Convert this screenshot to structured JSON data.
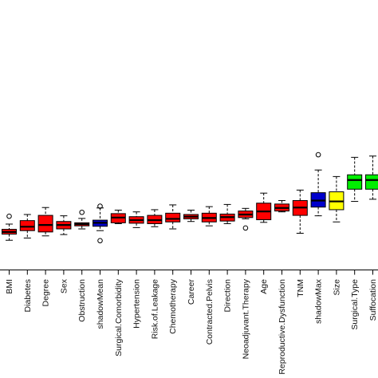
{
  "chart_data": {
    "type": "boxplot",
    "orientation": "vertical",
    "title": "",
    "xlabel": "",
    "ylabel": "",
    "grid": false,
    "legend": "none",
    "ylim": [
      0,
      45
    ],
    "categories": [
      "BMI",
      "Diabetes",
      "Degree",
      "Sex",
      "Obstruction",
      "shadowMean",
      "Surgical.Comorbidity",
      "Hypertension",
      "Risk.of.Leakage",
      "Chemotherapy",
      "Career",
      "Contracted.Pelvis",
      "Direction",
      "Neoadjuvant.Therapy",
      "Age",
      "Reproductive.Dysfunction",
      "TNM",
      "shadowMax",
      "Size",
      "Surgical.Type",
      "Suffocation"
    ],
    "boxes": [
      {
        "min": 1.6,
        "q1": 3.0,
        "median": 3.5,
        "q3": 4.1,
        "max": 5.3,
        "outliers": [
          7.1
        ],
        "color": "#ff0000"
      },
      {
        "min": 2.1,
        "q1": 3.8,
        "median": 4.7,
        "q3": 6.1,
        "max": 7.5,
        "outliers": [],
        "color": "#ff0000"
      },
      {
        "min": 2.6,
        "q1": 3.5,
        "median": 5.1,
        "q3": 7.3,
        "max": 9.1,
        "outliers": [],
        "color": "#ff0000"
      },
      {
        "min": 2.9,
        "q1": 4.2,
        "median": 5.1,
        "q3": 5.9,
        "max": 7.2,
        "outliers": [],
        "color": "#ff0000"
      },
      {
        "min": 4.2,
        "q1": 4.9,
        "median": 5.3,
        "q3": 5.6,
        "max": 6.6,
        "outliers": [
          8.0
        ],
        "color": "#ff0000"
      },
      {
        "min": 3.8,
        "q1": 4.8,
        "median": 5.6,
        "q3": 6.2,
        "max": 9.0,
        "outliers": [
          1.5,
          9.4
        ],
        "color": "#0000cc"
      },
      {
        "min": 5.4,
        "q1": 5.6,
        "median": 6.8,
        "q3": 7.7,
        "max": 8.5,
        "outliers": [],
        "color": "#ff0000"
      },
      {
        "min": 4.5,
        "q1": 5.5,
        "median": 6.2,
        "q3": 7.0,
        "max": 8.1,
        "outliers": [],
        "color": "#ff0000"
      },
      {
        "min": 4.7,
        "q1": 5.4,
        "median": 6.2,
        "q3": 7.3,
        "max": 8.6,
        "outliers": [],
        "color": "#ff0000"
      },
      {
        "min": 4.2,
        "q1": 5.8,
        "median": 6.5,
        "q3": 7.8,
        "max": 9.7,
        "outliers": [],
        "color": "#ff0000"
      },
      {
        "min": 5.9,
        "q1": 6.5,
        "median": 7.0,
        "q3": 7.5,
        "max": 8.5,
        "outliers": [],
        "color": "#ff0000"
      },
      {
        "min": 4.9,
        "q1": 5.8,
        "median": 6.7,
        "q3": 7.8,
        "max": 9.3,
        "outliers": [],
        "color": "#ff0000"
      },
      {
        "min": 5.4,
        "q1": 6.0,
        "median": 6.9,
        "q3": 7.6,
        "max": 9.8,
        "outliers": [],
        "color": "#ff0000"
      },
      {
        "min": 6.5,
        "q1": 6.8,
        "median": 7.5,
        "q3": 8.3,
        "max": 8.9,
        "outliers": [
          4.4
        ],
        "color": "#ff0000"
      },
      {
        "min": 5.7,
        "q1": 6.3,
        "median": 8.2,
        "q3": 10.1,
        "max": 12.4,
        "outliers": [],
        "color": "#ff0000"
      },
      {
        "min": 8.1,
        "q1": 8.3,
        "median": 9.0,
        "q3": 9.9,
        "max": 10.7,
        "outliers": [],
        "color": "#ff0000"
      },
      {
        "min": 3.2,
        "q1": 7.3,
        "median": 9.1,
        "q3": 10.7,
        "max": 13.1,
        "outliers": [],
        "color": "#ff0000"
      },
      {
        "min": 7.2,
        "q1": 9.2,
        "median": 10.7,
        "q3": 12.5,
        "max": 17.7,
        "outliers": [
          21.2
        ],
        "color": "#0000cc"
      },
      {
        "min": 5.8,
        "q1": 8.6,
        "median": 10.5,
        "q3": 12.7,
        "max": 16.2,
        "outliers": [],
        "color": "#ffff00"
      },
      {
        "min": 10.5,
        "q1": 13.3,
        "median": 15.4,
        "q3": 16.6,
        "max": 20.6,
        "outliers": [],
        "color": "#00ee00"
      },
      {
        "min": 11.0,
        "q1": 13.3,
        "median": 15.4,
        "q3": 16.6,
        "max": 20.9,
        "outliers": [],
        "color": "#00ee00"
      }
    ]
  }
}
